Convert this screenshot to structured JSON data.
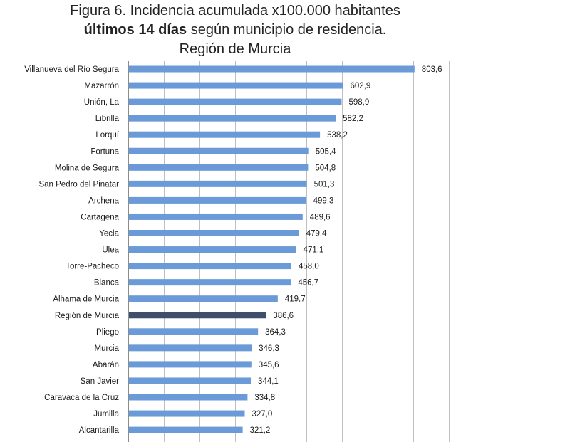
{
  "chart_data": {
    "type": "bar",
    "orientation": "horizontal",
    "title_line1": "Figura 6. Incidencia acumulada x100.000 habitantes",
    "title_line2_bold": "últimos 14 días",
    "title_line2_rest": " según municipio de residencia.",
    "title_line3": "Región de Murcia",
    "xlim": [
      0,
      900
    ],
    "gridlines": true,
    "colors": {
      "default": "#6a9bd8",
      "highlight": "#3d4f6b"
    },
    "highlight_category": "Región de Murcia",
    "categories": [
      "Villanueva del Río Segura",
      "Mazarrón",
      "Unión, La",
      "Librilla",
      "Lorquí",
      "Fortuna",
      "Molina de Segura",
      "San Pedro del Pinatar",
      "Archena",
      "Cartagena",
      "Yecla",
      "Ulea",
      "Torre-Pacheco",
      "Blanca",
      "Alhama de Murcia",
      "Región de Murcia",
      "Pliego",
      "Murcia",
      "Abarán",
      "San Javier",
      "Caravaca de la Cruz",
      "Jumilla",
      "Alcantarilla"
    ],
    "values": [
      803.6,
      602.9,
      598.9,
      582.2,
      538.2,
      505.4,
      504.8,
      501.3,
      499.3,
      489.6,
      479.4,
      471.1,
      458.0,
      456.7,
      419.7,
      386.6,
      364.3,
      346.3,
      345.6,
      344.1,
      334.8,
      327.0,
      321.2
    ],
    "value_labels": [
      "803,6",
      "602,9",
      "598,9",
      "582,2",
      "538,2",
      "505,4",
      "504,8",
      "501,3",
      "499,3",
      "489,6",
      "479,4",
      "471,1",
      "458,0",
      "456,7",
      "419,7",
      "386,6",
      "364,3",
      "346,3",
      "345,6",
      "344,1",
      "334,8",
      "327,0",
      "321,2"
    ]
  }
}
